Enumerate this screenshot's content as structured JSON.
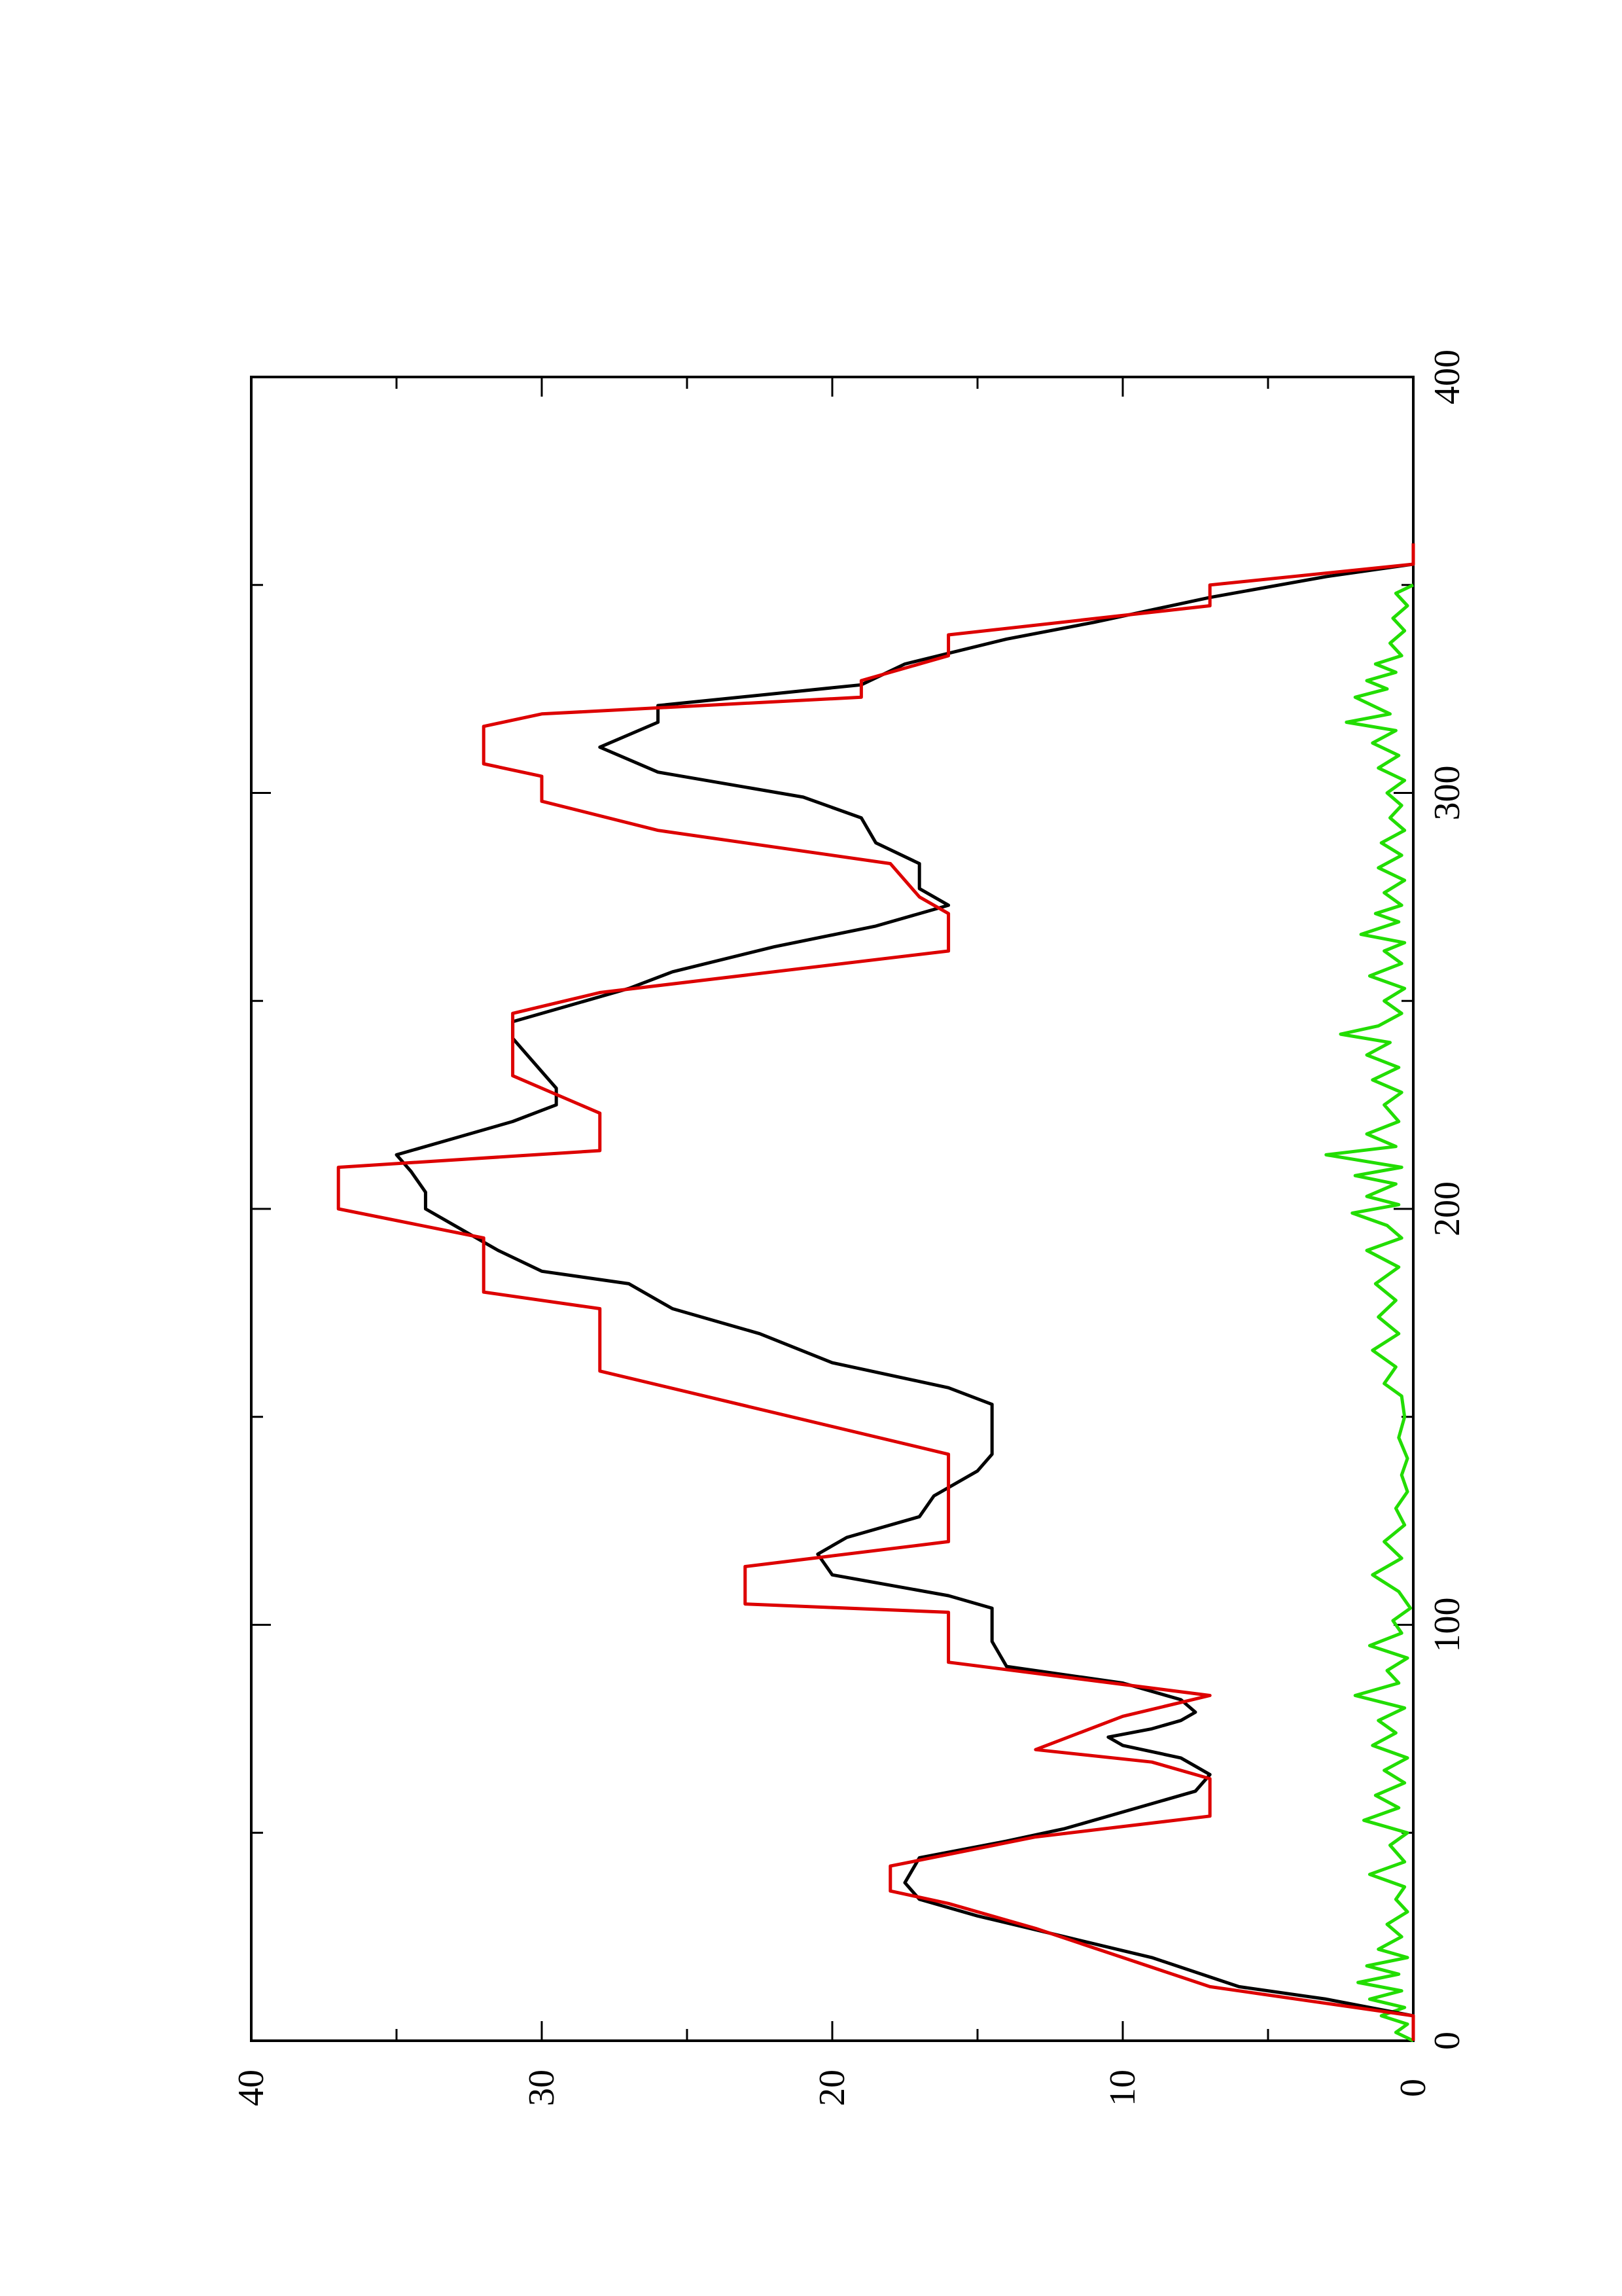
{
  "chart_data": {
    "type": "line",
    "orientation": "rotated 90° counter-clockwise (x axis runs bottom-to-top along the right side)",
    "title": "",
    "xlabel": "",
    "ylabel": "",
    "xlim": [
      0,
      400
    ],
    "ylim": [
      0,
      40
    ],
    "x_ticks": [
      0,
      100,
      200,
      300,
      400
    ],
    "y_ticks": [
      0,
      10,
      20,
      30,
      40
    ],
    "x_ticks_minor": [
      50,
      150,
      250,
      350
    ],
    "y_ticks_minor": [
      5,
      15,
      25,
      35
    ],
    "grid": false,
    "legend": "none",
    "series": [
      {
        "color": "#dd0000",
        "style": "step",
        "points": [
          [
            0,
            0
          ],
          [
            6,
            0
          ],
          [
            13,
            7
          ],
          [
            20,
            10
          ],
          [
            27,
            13
          ],
          [
            33,
            16
          ],
          [
            36,
            18
          ],
          [
            42,
            18
          ],
          [
            49,
            13
          ],
          [
            54,
            7
          ],
          [
            63,
            7
          ],
          [
            67,
            9
          ],
          [
            70,
            13
          ],
          [
            78,
            10
          ],
          [
            83,
            7
          ],
          [
            91,
            16
          ],
          [
            103,
            16
          ],
          [
            105,
            23
          ],
          [
            114,
            23
          ],
          [
            120,
            16
          ],
          [
            141,
            16
          ],
          [
            161,
            28
          ],
          [
            176,
            28
          ],
          [
            180,
            32
          ],
          [
            193,
            32
          ],
          [
            200,
            37
          ],
          [
            210,
            37
          ],
          [
            214,
            28
          ],
          [
            223,
            28
          ],
          [
            232,
            31
          ],
          [
            247,
            31
          ],
          [
            252,
            28
          ],
          [
            262,
            16
          ],
          [
            271,
            16
          ],
          [
            275,
            17
          ],
          [
            283,
            18
          ],
          [
            291,
            26
          ],
          [
            298,
            30
          ],
          [
            304,
            30
          ],
          [
            307,
            32
          ],
          [
            316,
            32
          ],
          [
            319,
            30
          ],
          [
            323,
            19
          ],
          [
            327,
            19
          ],
          [
            333,
            16
          ],
          [
            338,
            16
          ],
          [
            345,
            7
          ],
          [
            350,
            7
          ],
          [
            355,
            0
          ],
          [
            360,
            0
          ]
        ]
      },
      {
        "color": "#000000",
        "style": "smooth",
        "points": [
          [
            0,
            0
          ],
          [
            6,
            0
          ],
          [
            10,
            3
          ],
          [
            13,
            6
          ],
          [
            20,
            9
          ],
          [
            25,
            12
          ],
          [
            30,
            15
          ],
          [
            34,
            17
          ],
          [
            38,
            17.5
          ],
          [
            44,
            17
          ],
          [
            48,
            14
          ],
          [
            51,
            12
          ],
          [
            55,
            10
          ],
          [
            60,
            7.5
          ],
          [
            64,
            7
          ],
          [
            66,
            7.5
          ],
          [
            68,
            8
          ],
          [
            71,
            10
          ],
          [
            73,
            10.5
          ],
          [
            75,
            9
          ],
          [
            77,
            8
          ],
          [
            79,
            7.5
          ],
          [
            82,
            8
          ],
          [
            86,
            10
          ],
          [
            90,
            14
          ],
          [
            96,
            14.5
          ],
          [
            104,
            14.5
          ],
          [
            107,
            16
          ],
          [
            112,
            20
          ],
          [
            117,
            20.5
          ],
          [
            121,
            19.5
          ],
          [
            126,
            17
          ],
          [
            131,
            16.5
          ],
          [
            137,
            15
          ],
          [
            141,
            14.5
          ],
          [
            145,
            14.5
          ],
          [
            150,
            14.5
          ],
          [
            153,
            14.5
          ],
          [
            157,
            16
          ],
          [
            163,
            20
          ],
          [
            170,
            22.5
          ],
          [
            176,
            25.5
          ],
          [
            182,
            27
          ],
          [
            185,
            30
          ],
          [
            190,
            31.5
          ],
          [
            196,
            33
          ],
          [
            200,
            34
          ],
          [
            204,
            34
          ],
          [
            209,
            34.5
          ],
          [
            213,
            35
          ],
          [
            217,
            33
          ],
          [
            221,
            31
          ],
          [
            225,
            29.5
          ],
          [
            229,
            29.5
          ],
          [
            233,
            30
          ],
          [
            237,
            30.5
          ],
          [
            241,
            31
          ],
          [
            245,
            31
          ],
          [
            249,
            29
          ],
          [
            253,
            27
          ],
          [
            257,
            25.5
          ],
          [
            263,
            22
          ],
          [
            268,
            18.5
          ],
          [
            273,
            16
          ],
          [
            277,
            17
          ],
          [
            283,
            17
          ],
          [
            288,
            18.5
          ],
          [
            294,
            19
          ],
          [
            299,
            21
          ],
          [
            305,
            26
          ],
          [
            311,
            28
          ],
          [
            317,
            26
          ],
          [
            321,
            26
          ],
          [
            326,
            19
          ],
          [
            331,
            17.5
          ],
          [
            337,
            14
          ],
          [
            341,
            11
          ],
          [
            347,
            7
          ],
          [
            352,
            3
          ],
          [
            355,
            0
          ],
          [
            360,
            0
          ]
        ]
      },
      {
        "color": "#22dd00",
        "style": "noisy",
        "points": [
          [
            0,
            0
          ],
          [
            2,
            0.6
          ],
          [
            4,
            0.2
          ],
          [
            6,
            1.1
          ],
          [
            8,
            0.3
          ],
          [
            10,
            1.5
          ],
          [
            12,
            0.4
          ],
          [
            14,
            1.9
          ],
          [
            16,
            0.5
          ],
          [
            18,
            1.6
          ],
          [
            20,
            0.2
          ],
          [
            22,
            1.2
          ],
          [
            25,
            0.4
          ],
          [
            28,
            0.9
          ],
          [
            31,
            0.2
          ],
          [
            34,
            0.6
          ],
          [
            37,
            0.3
          ],
          [
            40,
            1.5
          ],
          [
            43,
            0.3
          ],
          [
            47,
            0.8
          ],
          [
            50,
            0.2
          ],
          [
            53,
            1.7
          ],
          [
            56,
            0.5
          ],
          [
            59,
            1.3
          ],
          [
            62,
            0.3
          ],
          [
            65,
            1.0
          ],
          [
            68,
            0.2
          ],
          [
            71,
            1.4
          ],
          [
            74,
            0.6
          ],
          [
            77,
            1.2
          ],
          [
            80,
            0.3
          ],
          [
            83,
            2.0
          ],
          [
            86,
            0.5
          ],
          [
            89,
            0.9
          ],
          [
            92,
            0.2
          ],
          [
            95,
            1.5
          ],
          [
            98,
            0.4
          ],
          [
            101,
            0.7
          ],
          [
            104,
            0.1
          ],
          [
            108,
            0.5
          ],
          [
            112,
            1.4
          ],
          [
            116,
            0.4
          ],
          [
            120,
            1.0
          ],
          [
            124,
            0.3
          ],
          [
            128,
            0.6
          ],
          [
            132,
            0.2
          ],
          [
            136,
            0.4
          ],
          [
            140,
            0.2
          ],
          [
            145,
            0.5
          ],
          [
            150,
            0.3
          ],
          [
            155,
            0.4
          ],
          [
            158,
            1.0
          ],
          [
            162,
            0.6
          ],
          [
            166,
            1.4
          ],
          [
            170,
            0.5
          ],
          [
            174,
            1.2
          ],
          [
            178,
            0.6
          ],
          [
            182,
            1.3
          ],
          [
            186,
            0.5
          ],
          [
            190,
            1.6
          ],
          [
            193,
            0.4
          ],
          [
            196,
            0.9
          ],
          [
            199,
            2.1
          ],
          [
            201,
            0.5
          ],
          [
            203,
            1.6
          ],
          [
            206,
            0.6
          ],
          [
            208,
            2.0
          ],
          [
            210,
            0.4
          ],
          [
            213,
            3.0
          ],
          [
            215,
            0.6
          ],
          [
            218,
            1.6
          ],
          [
            221,
            0.5
          ],
          [
            225,
            1.0
          ],
          [
            228,
            0.4
          ],
          [
            231,
            1.4
          ],
          [
            234,
            0.5
          ],
          [
            237,
            1.6
          ],
          [
            240,
            0.8
          ],
          [
            242,
            2.5
          ],
          [
            244,
            1.2
          ],
          [
            247,
            0.4
          ],
          [
            250,
            1.0
          ],
          [
            253,
            0.3
          ],
          [
            256,
            1.5
          ],
          [
            259,
            0.4
          ],
          [
            262,
            1.0
          ],
          [
            264,
            0.3
          ],
          [
            266,
            1.8
          ],
          [
            269,
            0.5
          ],
          [
            271,
            1.3
          ],
          [
            273,
            0.4
          ],
          [
            276,
            1.0
          ],
          [
            279,
            0.3
          ],
          [
            282,
            1.2
          ],
          [
            285,
            0.4
          ],
          [
            288,
            1.1
          ],
          [
            291,
            0.3
          ],
          [
            294,
            0.8
          ],
          [
            297,
            0.4
          ],
          [
            300,
            0.9
          ],
          [
            303,
            0.3
          ],
          [
            306,
            1.2
          ],
          [
            309,
            0.5
          ],
          [
            312,
            1.4
          ],
          [
            315,
            0.6
          ],
          [
            317,
            2.3
          ],
          [
            319,
            0.8
          ],
          [
            321,
            1.4
          ],
          [
            323,
            2.0
          ],
          [
            325,
            0.9
          ],
          [
            327,
            1.6
          ],
          [
            329,
            0.6
          ],
          [
            331,
            1.3
          ],
          [
            333,
            0.4
          ],
          [
            336,
            0.8
          ],
          [
            339,
            0.3
          ],
          [
            342,
            0.7
          ],
          [
            345,
            0.2
          ],
          [
            348,
            0.6
          ],
          [
            350,
            0.0
          ]
        ]
      }
    ]
  }
}
